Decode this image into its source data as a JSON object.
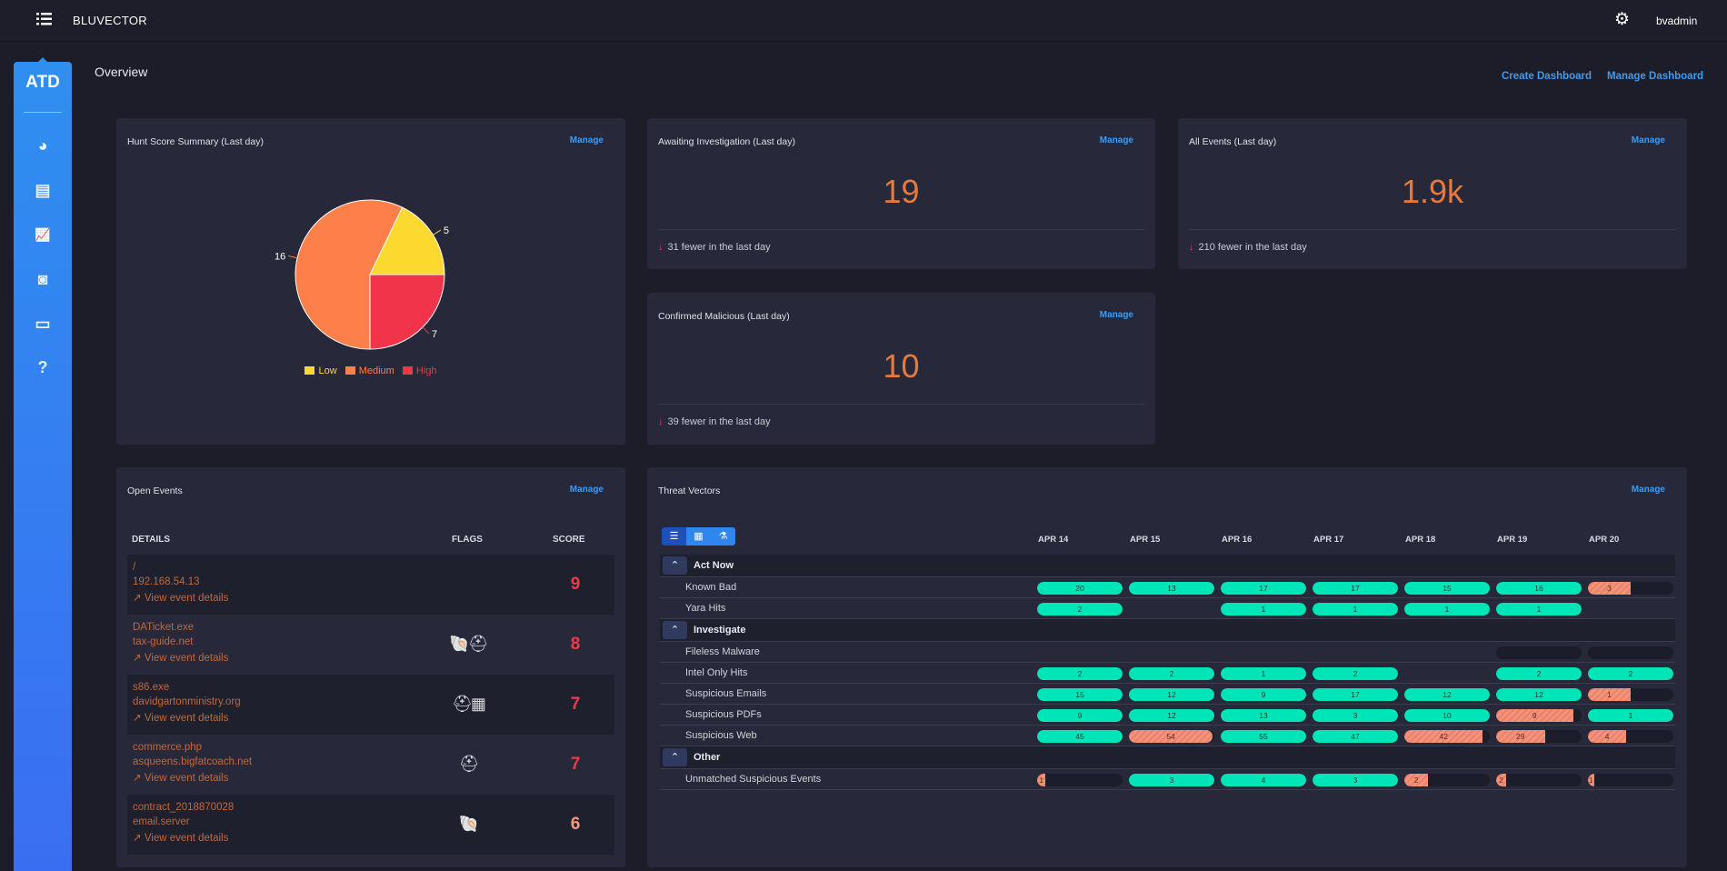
{
  "header": {
    "brand": "BLUVECTOR",
    "user": "bvadmin"
  },
  "sidebar": {
    "logo": "ATD",
    "items": [
      {
        "icon": "pie-chart-icon"
      },
      {
        "icon": "calendar-icon"
      },
      {
        "icon": "line-chart-icon"
      },
      {
        "icon": "search-document-icon"
      },
      {
        "icon": "server-icon"
      },
      {
        "icon": "help-icon",
        "glyph": "?"
      }
    ]
  },
  "page": {
    "title": "Overview",
    "create_dashboard": "Create Dashboard",
    "manage_dashboard": "Manage Dashboard"
  },
  "manage_label": "Manage",
  "hunt": {
    "title": "Hunt Score Summary (Last day)"
  },
  "chart_data": {
    "type": "pie",
    "title": "Hunt Score Summary (Last day)",
    "categories": [
      "Low",
      "Medium",
      "High"
    ],
    "values": [
      5,
      16,
      7
    ],
    "colors": [
      "#fcd92f",
      "#fd7f4a",
      "#f2344a"
    ],
    "legend": "bottom"
  },
  "awaiting": {
    "title": "Awaiting Investigation (Last day)",
    "value": "19",
    "delta": "31 fewer in the last day"
  },
  "all_events": {
    "title": "All Events (Last day)",
    "value": "1.9k",
    "delta": "210 fewer in the last day"
  },
  "confirmed": {
    "title": "Confirmed Malicious (Last day)",
    "value": "10",
    "delta": "39 fewer in the last day"
  },
  "open_events": {
    "title": "Open Events",
    "columns": [
      "DETAILS",
      "FLAGS",
      "SCORE"
    ],
    "link_label": "View event details",
    "rows": [
      {
        "name": "/",
        "host": "192.168.54.13",
        "flags": "",
        "score": "9",
        "score_color": "#ee3b4a"
      },
      {
        "name": "DATicket.exe",
        "host": "tax-guide.net",
        "flags": "🐚⛑",
        "score": "8",
        "score_color": "#ee3b4a"
      },
      {
        "name": "s86.exe",
        "host": "davidgartonministry.org",
        "flags": "⛑▦",
        "score": "7",
        "score_color": "#ee3b4a"
      },
      {
        "name": "commerce.php",
        "host": "asqueens.bigfatcoach.net",
        "flags": "⛑",
        "score": "7",
        "score_color": "#ee3b4a"
      },
      {
        "name": "contract_2018870028",
        "host": "email.server",
        "flags": "🐚",
        "score": "6",
        "score_color": "#f49a7e"
      }
    ]
  },
  "threat": {
    "title": "Threat Vectors",
    "dates": [
      "APR 14",
      "APR 15",
      "APR 16",
      "APR 17",
      "APR 18",
      "APR 19",
      "APR 20"
    ],
    "groups": [
      {
        "label": "Act Now",
        "rows": [
          {
            "label": "Known Bad",
            "cells": [
              [
                20,
                "ok",
                1
              ],
              [
                13,
                "ok",
                1
              ],
              [
                17,
                "ok",
                1
              ],
              [
                17,
                "ok",
                1
              ],
              [
                15,
                "ok",
                1
              ],
              [
                16,
                "ok",
                1
              ],
              [
                3,
                "bad",
                0.5
              ]
            ]
          },
          {
            "label": "Yara Hits",
            "cells": [
              [
                2,
                "ok",
                1
              ],
              null,
              [
                1,
                "ok",
                1
              ],
              [
                1,
                "ok",
                1
              ],
              [
                1,
                "ok",
                1
              ],
              [
                1,
                "ok",
                1
              ],
              null
            ]
          }
        ]
      },
      {
        "label": "Investigate",
        "rows": [
          {
            "label": "Fileless Malware",
            "cells": [
              null,
              null,
              null,
              null,
              null,
              [
                "",
                "empty",
                0
              ],
              [
                "",
                "empty",
                0
              ]
            ]
          },
          {
            "label": "Intel Only Hits",
            "cells": [
              [
                2,
                "ok",
                1
              ],
              [
                2,
                "ok",
                1
              ],
              [
                1,
                "ok",
                1
              ],
              [
                2,
                "ok",
                1
              ],
              null,
              [
                2,
                "ok",
                1
              ],
              [
                2,
                "ok",
                1
              ]
            ]
          },
          {
            "label": "Suspicious Emails",
            "cells": [
              [
                15,
                "ok",
                1
              ],
              [
                12,
                "ok",
                1
              ],
              [
                9,
                "ok",
                1
              ],
              [
                17,
                "ok",
                1
              ],
              [
                12,
                "ok",
                1
              ],
              [
                12,
                "ok",
                1
              ],
              [
                1,
                "bad",
                0.5
              ]
            ]
          },
          {
            "label": "Suspicious PDFs",
            "cells": [
              [
                9,
                "ok",
                1
              ],
              [
                12,
                "ok",
                1
              ],
              [
                13,
                "ok",
                1
              ],
              [
                3,
                "ok",
                1
              ],
              [
                10,
                "ok",
                1
              ],
              [
                9,
                "bad",
                0.9
              ],
              [
                1,
                "ok",
                1
              ]
            ]
          },
          {
            "label": "Suspicious Web",
            "cells": [
              [
                45,
                "ok",
                1
              ],
              [
                54,
                "bad",
                0.98
              ],
              [
                55,
                "ok",
                1
              ],
              [
                47,
                "ok",
                1
              ],
              [
                42,
                "bad",
                0.92
              ],
              [
                29,
                "bad",
                0.57
              ],
              [
                4,
                "bad",
                0.45
              ]
            ]
          }
        ]
      },
      {
        "label": "Other",
        "rows": [
          {
            "label": "Unmatched Suspicious Events",
            "cells": [
              [
                1,
                "bad",
                0.1
              ],
              [
                3,
                "ok",
                1
              ],
              [
                4,
                "ok",
                1
              ],
              [
                3,
                "ok",
                1
              ],
              [
                2,
                "bad",
                0.28
              ],
              [
                2,
                "bad",
                0.12
              ],
              [
                1,
                "bad",
                0.06
              ]
            ]
          }
        ]
      }
    ]
  }
}
